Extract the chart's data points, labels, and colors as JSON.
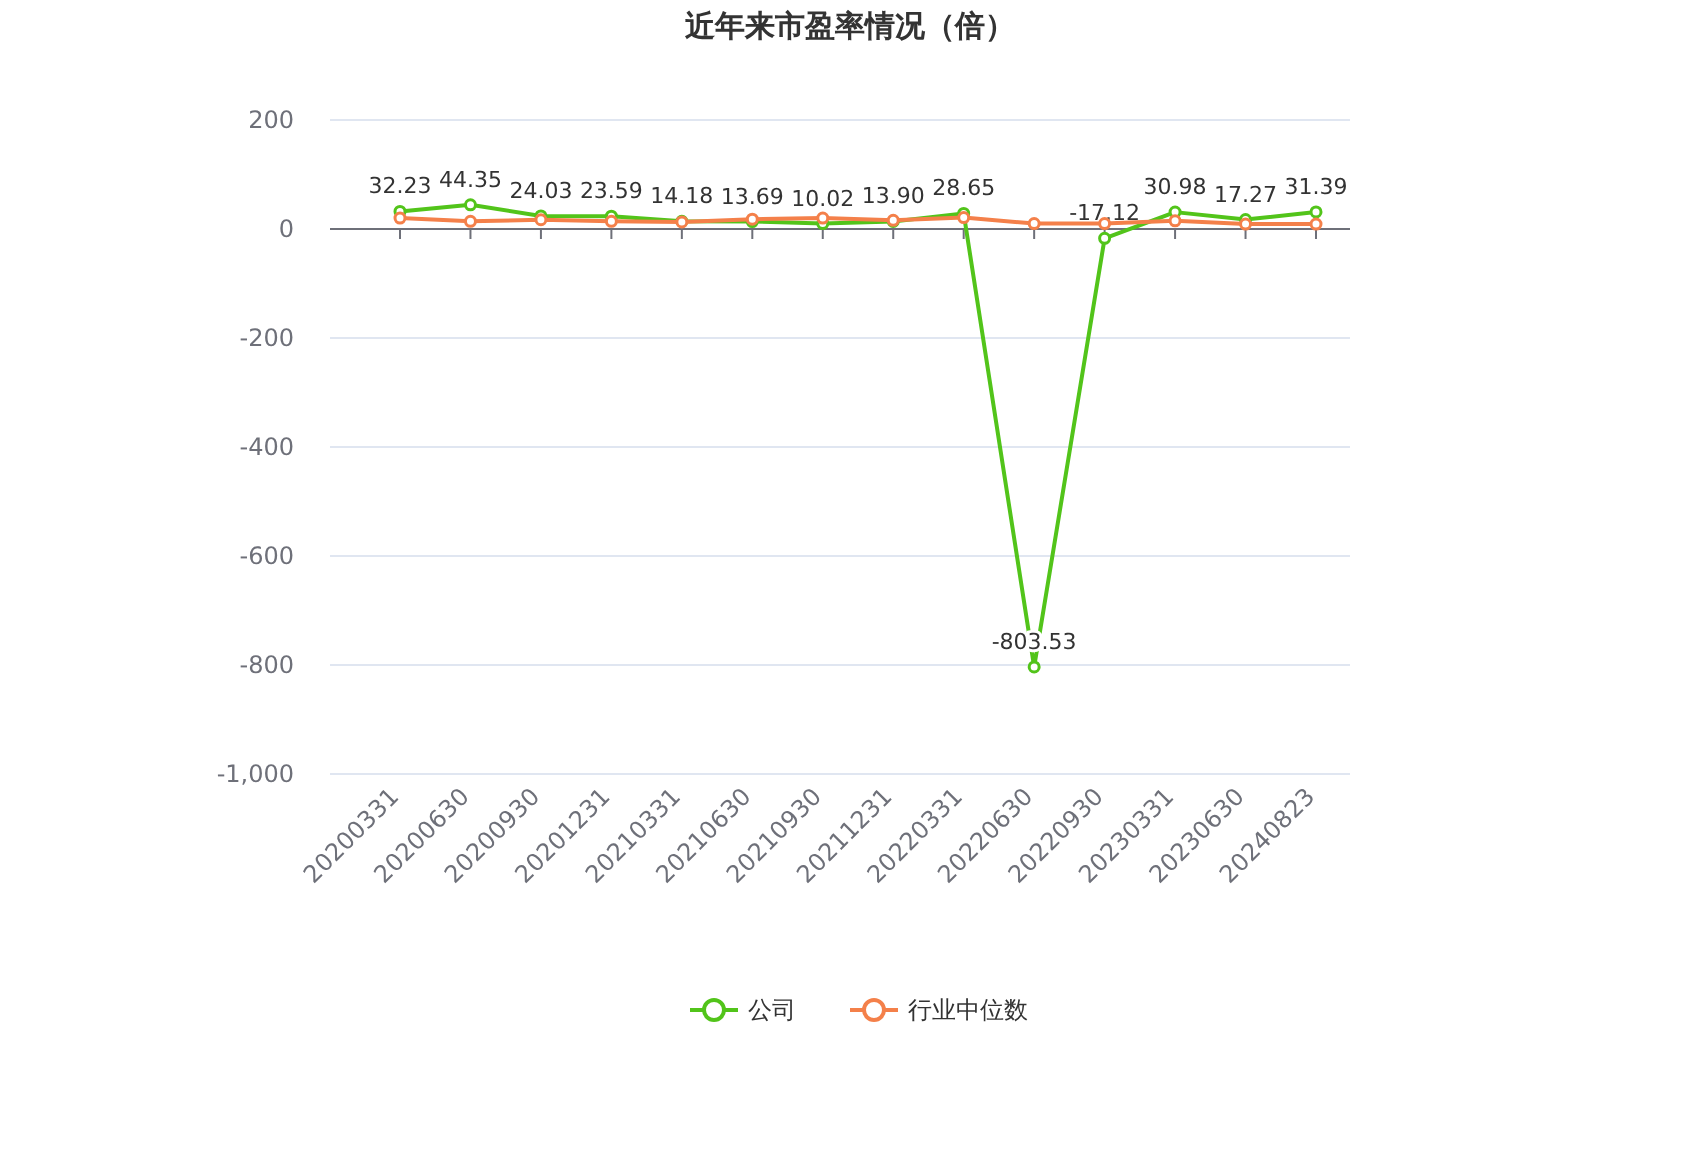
{
  "chart_data": {
    "type": "line",
    "title": "近年来市盈率情况（倍）",
    "categories": [
      "20200331",
      "20200630",
      "20200930",
      "20201231",
      "20210331",
      "20210630",
      "20210930",
      "20211231",
      "20220331",
      "20220630",
      "20220930",
      "20230331",
      "20230630",
      "20240823"
    ],
    "series": [
      {
        "name": "公司",
        "color": "#52c41a",
        "values": [
          32.23,
          44.35,
          24.03,
          23.59,
          14.18,
          13.69,
          10.02,
          13.9,
          28.65,
          -803.53,
          -17.12,
          30.98,
          17.27,
          31.39
        ],
        "value_labels": [
          "32.23",
          "44.35",
          "24.03",
          "23.59",
          "14.18",
          "13.69",
          "10.02",
          "13.90",
          "28.65",
          "-803.53",
          "-17.12",
          "30.98",
          "17.27",
          "31.39"
        ]
      },
      {
        "name": "行业中位数",
        "color": "#f4804a",
        "values": [
          20,
          14,
          17,
          14,
          13,
          18,
          20,
          16,
          21,
          10,
          10,
          15,
          9,
          9
        ]
      }
    ],
    "ylim": [
      -1000,
      200
    ],
    "yticks": [
      {
        "value": -1000,
        "label": "-1,000"
      },
      -800,
      -600,
      -400,
      -200,
      0,
      200
    ],
    "grid": "y",
    "legend": "bottom",
    "marker": "circle",
    "line_style": "solid"
  }
}
